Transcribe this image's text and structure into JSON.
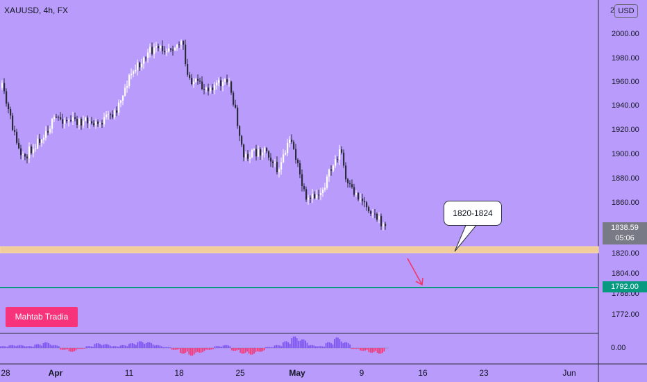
{
  "chart_header": {
    "title": "XAUUSD, 4h, FX",
    "currency_button": "USD",
    "top_tick_partial": "2"
  },
  "annotations": {
    "zone_label": "1820-1824",
    "brand_label": "Mahtab Tradia"
  },
  "price_labels": {
    "last_price": "1838.59",
    "countdown": "05:06",
    "target_price": "1792.00"
  },
  "indicator": {
    "zero_label": "0.00"
  },
  "colors": {
    "background": "#b99bfb",
    "zone": "#f0cd9a",
    "target_line": "#089981",
    "arrow": "#f23667",
    "brand": "#f7347b",
    "hist_up": "#7e57f2",
    "hist_down": "#f23d7b"
  },
  "chart_data": {
    "type": "candlestick",
    "symbol": "XAUUSD",
    "timeframe": "4h",
    "yaxis_ticks": [
      "2000.00",
      "1980.00",
      "1960.00",
      "1940.00",
      "1920.00",
      "1900.00",
      "1880.00",
      "1860.00",
      "1820.00",
      "1804.00",
      "1788.00",
      "1772.00"
    ],
    "xaxis_ticks": [
      "28",
      "Apr",
      "11",
      "18",
      "25",
      "May",
      "9",
      "16",
      "23",
      "Jun"
    ],
    "bold_x_ticks": [
      "Apr",
      "May"
    ],
    "last_price": 1838.59,
    "support_zone": [
      1820,
      1824
    ],
    "target_line": 1792.0,
    "price_path": [
      {
        "x": "28",
        "y": 1955
      },
      {
        "x": "31",
        "y": 1895
      },
      {
        "x": "Apr",
        "y": 1930
      },
      {
        "x": "06",
        "y": 1925
      },
      {
        "x": "09",
        "y": 1935
      },
      {
        "x": "11",
        "y": 1965
      },
      {
        "x": "14",
        "y": 1985
      },
      {
        "x": "18",
        "y": 1992
      },
      {
        "x": "19",
        "y": 1965
      },
      {
        "x": "21",
        "y": 1955
      },
      {
        "x": "23",
        "y": 1960
      },
      {
        "x": "25",
        "y": 1898
      },
      {
        "x": "27",
        "y": 1905
      },
      {
        "x": "29",
        "y": 1885
      },
      {
        "x": "May",
        "y": 1915
      },
      {
        "x": "02",
        "y": 1860
      },
      {
        "x": "05",
        "y": 1870
      },
      {
        "x": "07",
        "y": 1905
      },
      {
        "x": "08",
        "y": 1875
      },
      {
        "x": "10",
        "y": 1860
      },
      {
        "x": "11",
        "y": 1838.59
      }
    ]
  }
}
